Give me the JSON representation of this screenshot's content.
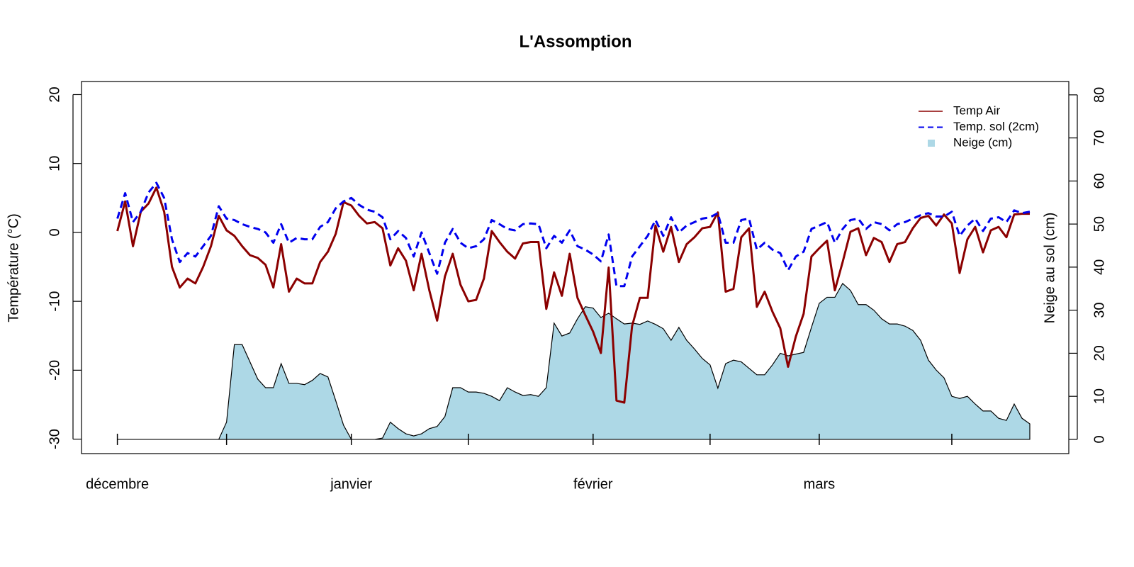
{
  "chart_data": {
    "type": "line",
    "title": "L'Assomption",
    "y_label": "Température (°C)",
    "y2_label": "Neige au sol (cm)",
    "x": [
      0,
      1,
      2,
      3,
      4,
      5,
      6,
      7,
      8,
      9,
      10,
      11,
      12,
      13,
      14,
      15,
      16,
      17,
      18,
      19,
      20,
      21,
      22,
      23,
      24,
      25,
      26,
      27,
      28,
      29,
      30,
      31,
      32,
      33,
      34,
      35,
      36,
      37,
      38,
      39,
      40,
      41,
      42,
      43,
      44,
      45,
      46,
      47,
      48,
      49,
      50,
      51,
      52,
      53,
      54,
      55,
      56,
      57,
      58,
      59,
      60,
      61,
      62,
      63,
      64,
      65,
      66,
      67,
      68,
      69,
      70,
      71,
      72,
      73,
      74,
      75,
      76,
      77,
      78,
      79,
      80,
      81,
      82,
      83,
      84,
      85,
      86,
      87,
      88,
      89,
      90,
      91,
      92,
      93,
      94,
      95,
      96,
      97,
      98,
      99,
      100,
      101,
      102,
      103,
      104,
      105,
      106,
      107,
      108,
      109,
      110,
      111,
      112,
      113,
      114,
      115,
      116,
      117
    ],
    "xlim": [
      -4.6,
      122
    ],
    "xticks": [
      {
        "value": 0,
        "label": "décembre"
      },
      {
        "value": 30,
        "label": "janvier"
      },
      {
        "value": 61,
        "label": "février"
      },
      {
        "value": 90,
        "label": "mars"
      }
    ],
    "xminor_ticks": [
      14,
      45,
      76,
      107
    ],
    "ylim": [
      -32.1,
      21.9
    ],
    "yticks": [
      -30,
      -20,
      -10,
      0,
      10,
      20
    ],
    "y2lim": [
      -3.3,
      83.1
    ],
    "y2ticks": [
      0,
      10,
      20,
      30,
      40,
      50,
      60,
      70,
      80
    ],
    "legend": "top-right",
    "series": [
      {
        "name": "Temp Air",
        "color": "#8b0000",
        "values": [
          0.2,
          4.5,
          -2,
          3,
          4.2,
          6.5,
          3,
          -5,
          -8,
          -6.7,
          -7.4,
          -5,
          -2,
          2.4,
          0.3,
          -0.5,
          -2,
          -3.3,
          -3.7,
          -4.7,
          -8,
          -1.7,
          -8.6,
          -6.7,
          -7.4,
          -7.4,
          -4.3,
          -2.8,
          -0.2,
          4.4,
          3.9,
          2.4,
          1.3,
          1.5,
          0.6,
          -4.8,
          -2.3,
          -4.1,
          -8.4,
          -3.1,
          -8.4,
          -12.8,
          -6.4,
          -3.1,
          -7.6,
          -10,
          -9.8,
          -6.7,
          0.2,
          -1.4,
          -2.8,
          -3.8,
          -1.6,
          -1.4,
          -1.4,
          -11.1,
          -5.8,
          -9.2,
          -3.1,
          -9.5,
          -12,
          -14.4,
          -17.5,
          -5.1,
          -24.4,
          -24.7,
          -13.6,
          -9.5,
          -9.5,
          1,
          -2.8,
          0.8,
          -4.3,
          -1.7,
          -0.7,
          0.6,
          0.8,
          2.9,
          -8.6,
          -8.2,
          -0.7,
          0.6,
          -10.8,
          -8.6,
          -11.5,
          -13.9,
          -19.5,
          -15.1,
          -11.8,
          -3.5,
          -2.3,
          -1.2,
          -8.4,
          -4.3,
          0.1,
          0.6,
          -3.3,
          -0.8,
          -1.4,
          -4.3,
          -1.7,
          -1.4,
          0.6,
          2.1,
          2.4,
          1,
          2.6,
          1.3,
          -5.9,
          -1,
          0.8,
          -2.9,
          0.3,
          0.8,
          -0.7,
          2.6,
          2.7,
          2.7
        ]
      },
      {
        "name": "Temp. sol (2cm)",
        "color": "#0000ee",
        "dashed": true,
        "values": [
          2,
          5.7,
          1.5,
          3,
          5.8,
          7.2,
          5,
          -1,
          -4.3,
          -3,
          -3.5,
          -2,
          -0.5,
          3.8,
          2,
          1.8,
          1.2,
          0.8,
          0.5,
          0,
          -1.5,
          1.2,
          -1.5,
          -0.8,
          -1,
          -1,
          0.8,
          1.5,
          3.5,
          4.5,
          5,
          4,
          3.3,
          3,
          2.2,
          -1,
          0.2,
          -0.8,
          -3.5,
          0,
          -3,
          -6,
          -1.5,
          0.5,
          -1.5,
          -2.3,
          -2,
          -1,
          1.8,
          1.2,
          0.5,
          0.3,
          1.2,
          1.3,
          1.2,
          -2.3,
          -0.5,
          -1.5,
          0.3,
          -2,
          -2.5,
          -3.2,
          -4.2,
          -0.3,
          -7.8,
          -7.8,
          -3.5,
          -2,
          -0.5,
          1.8,
          -0.5,
          2.2,
          0,
          1,
          1.5,
          2,
          2.2,
          2.8,
          -1.5,
          -1.5,
          1.8,
          2,
          -2.5,
          -1.5,
          -2.5,
          -3,
          -5.5,
          -3.5,
          -2.8,
          0.5,
          1,
          1.5,
          -1.5,
          0.5,
          1.8,
          2,
          0.5,
          1.5,
          1.2,
          0.3,
          1.2,
          1.5,
          2,
          2.5,
          2.8,
          2.3,
          2.3,
          3,
          -0.5,
          1,
          2,
          0.2,
          2,
          2.2,
          1.5,
          3.2,
          2.8,
          3
        ]
      },
      {
        "name": "Neige (cm)",
        "color": "#add8e6",
        "axis": "y2",
        "area": true,
        "values": [
          0,
          0,
          0,
          0,
          0,
          0,
          0,
          0,
          0,
          0,
          0,
          0,
          0,
          0,
          4,
          22,
          22,
          18,
          14,
          12,
          12,
          17.6,
          13,
          13,
          12.7,
          13.7,
          15.3,
          14.5,
          9,
          3.3,
          0,
          0,
          0,
          0,
          0.3,
          4,
          2.5,
          1.3,
          0.8,
          1.3,
          2.5,
          3,
          5.3,
          12,
          12,
          11,
          11,
          10.7,
          10,
          9,
          12,
          11,
          10.2,
          10.4,
          10,
          12,
          27,
          24,
          24.7,
          28,
          30.8,
          30.5,
          28.3,
          29.3,
          28,
          26.8,
          27,
          26.7,
          27.5,
          26.7,
          25.7,
          23,
          26,
          23,
          21,
          18.8,
          17.3,
          11.9,
          17.6,
          18.4,
          18,
          16.5,
          15,
          15,
          17.3,
          20,
          19.4,
          19.8,
          20.2,
          26,
          31.6,
          33,
          33,
          36.2,
          34.6,
          31.3,
          31.3,
          30,
          28,
          26.8,
          26.8,
          26.3,
          25.3,
          23,
          18.4,
          16.1,
          14.3,
          10,
          9.5,
          10,
          8.2,
          6.6,
          6.6,
          4.9,
          4.4,
          8.2,
          4.9,
          3.6
        ]
      }
    ]
  }
}
